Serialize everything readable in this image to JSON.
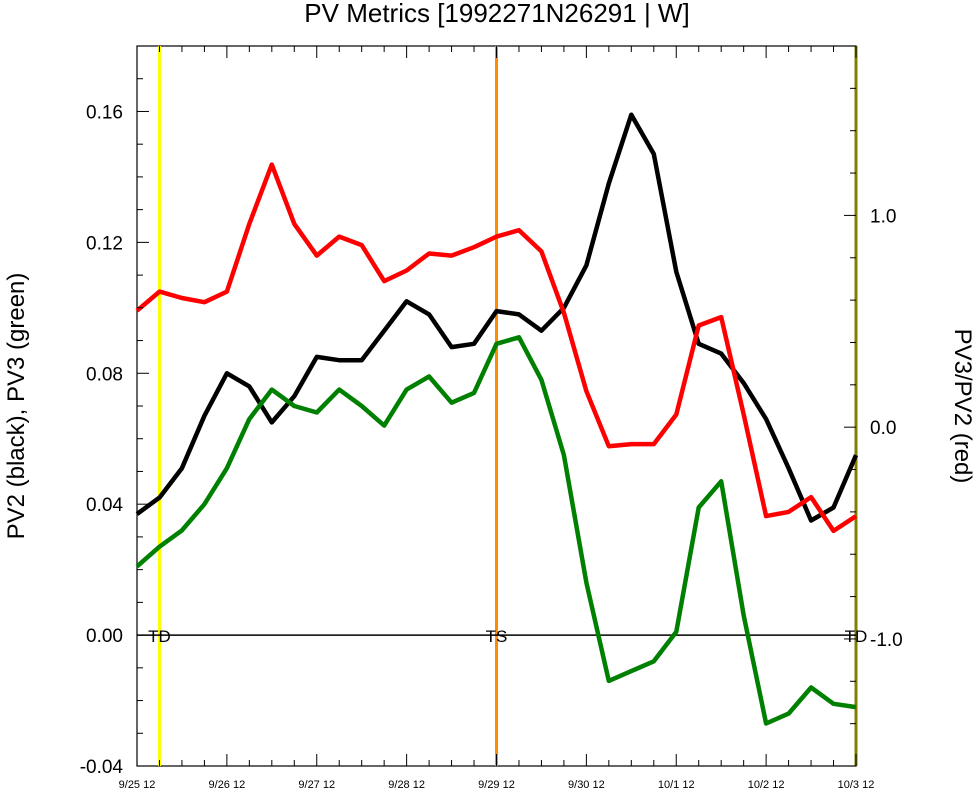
{
  "chart_data": {
    "type": "line",
    "title": "PV Metrics [1992271N26291 | W]",
    "ylabel_left": "PV2 (black), PV3 (green)",
    "ylabel_right": "PV3/PV2 (red)",
    "x_ticks": [
      "9/25 12",
      "9/26 12",
      "9/27 12",
      "9/28 12",
      "9/29 12",
      "9/30 12",
      "10/1 12",
      "10/2 12",
      "10/3 12"
    ],
    "xlim": [
      0,
      8
    ],
    "ylim_left": [
      -0.04,
      0.18
    ],
    "ylim_right": [
      -1.6,
      1.8
    ],
    "yticks_left": [
      "0.16",
      "0.12",
      "0.08",
      "0.04",
      "0.00",
      "-0.04"
    ],
    "yticks_right": [
      "1.0",
      "0.0",
      "-1.0"
    ],
    "hline": 0.0,
    "events": [
      {
        "label": "TD",
        "x": 0.25,
        "color": "#ffff00"
      },
      {
        "label": "TS",
        "x": 4.0,
        "color": "#ff8c00"
      },
      {
        "label": "TD",
        "x": 8.0,
        "color": "#808000"
      }
    ],
    "series": [
      {
        "axis": "left",
        "color": "#000000",
        "x": [
          0,
          0.25,
          0.5,
          0.75,
          1.0,
          1.25,
          1.5,
          1.75,
          2.0,
          2.25,
          2.5,
          2.75,
          3.0,
          3.25,
          3.5,
          3.75,
          4.0,
          4.25,
          4.5,
          4.75,
          5.0,
          5.25,
          5.5,
          5.75,
          6.0,
          6.25,
          6.5,
          6.75,
          7.0,
          7.25,
          7.5,
          7.75,
          8.0
        ],
        "values": [
          0.037,
          0.042,
          0.051,
          0.067,
          0.08,
          0.076,
          0.065,
          0.073,
          0.085,
          0.084,
          0.084,
          0.093,
          0.102,
          0.098,
          0.088,
          0.089,
          0.099,
          0.098,
          0.093,
          0.1,
          0.113,
          0.138,
          0.159,
          0.147,
          0.111,
          0.089,
          0.086,
          0.077,
          0.066,
          0.051,
          0.035,
          0.039,
          0.055
        ]
      },
      {
        "axis": "left",
        "color": "#008000",
        "x": [
          0,
          0.25,
          0.5,
          0.75,
          1.0,
          1.25,
          1.5,
          1.75,
          2.0,
          2.25,
          2.5,
          2.75,
          3.0,
          3.25,
          3.5,
          3.75,
          4.0,
          4.25,
          4.5,
          4.75,
          5.0,
          5.25,
          5.5,
          5.75,
          6.0,
          6.25,
          6.5,
          6.75,
          7.0,
          7.25,
          7.5,
          7.75,
          8.0
        ],
        "values": [
          0.021,
          0.027,
          0.032,
          0.04,
          0.051,
          0.066,
          0.075,
          0.07,
          0.068,
          0.075,
          0.07,
          0.064,
          0.075,
          0.079,
          0.071,
          0.074,
          0.089,
          0.091,
          0.078,
          0.055,
          0.016,
          -0.014,
          -0.011,
          -0.008,
          0.001,
          0.039,
          0.047,
          0.006,
          -0.027,
          -0.024,
          -0.016,
          -0.021,
          -0.022
        ]
      },
      {
        "axis": "right",
        "color": "#ff0000",
        "x": [
          0,
          0.25,
          0.5,
          0.75,
          1.0,
          1.25,
          1.5,
          1.75,
          2.0,
          2.25,
          2.5,
          2.75,
          3.0,
          3.25,
          3.5,
          3.75,
          4.0,
          4.25,
          4.5,
          4.75,
          5.0,
          5.25,
          5.5,
          5.75,
          6.0,
          6.25,
          6.5,
          6.75,
          7.0,
          7.25,
          7.5,
          7.75,
          8.0
        ],
        "values": [
          0.55,
          0.64,
          0.61,
          0.59,
          0.64,
          0.96,
          1.24,
          0.96,
          0.81,
          0.9,
          0.86,
          0.69,
          0.74,
          0.82,
          0.81,
          0.85,
          0.9,
          0.93,
          0.83,
          0.54,
          0.17,
          -0.09,
          -0.08,
          -0.08,
          0.06,
          0.48,
          0.52,
          0.06,
          -0.42,
          -0.4,
          -0.33,
          -0.49,
          -0.42
        ]
      }
    ]
  }
}
